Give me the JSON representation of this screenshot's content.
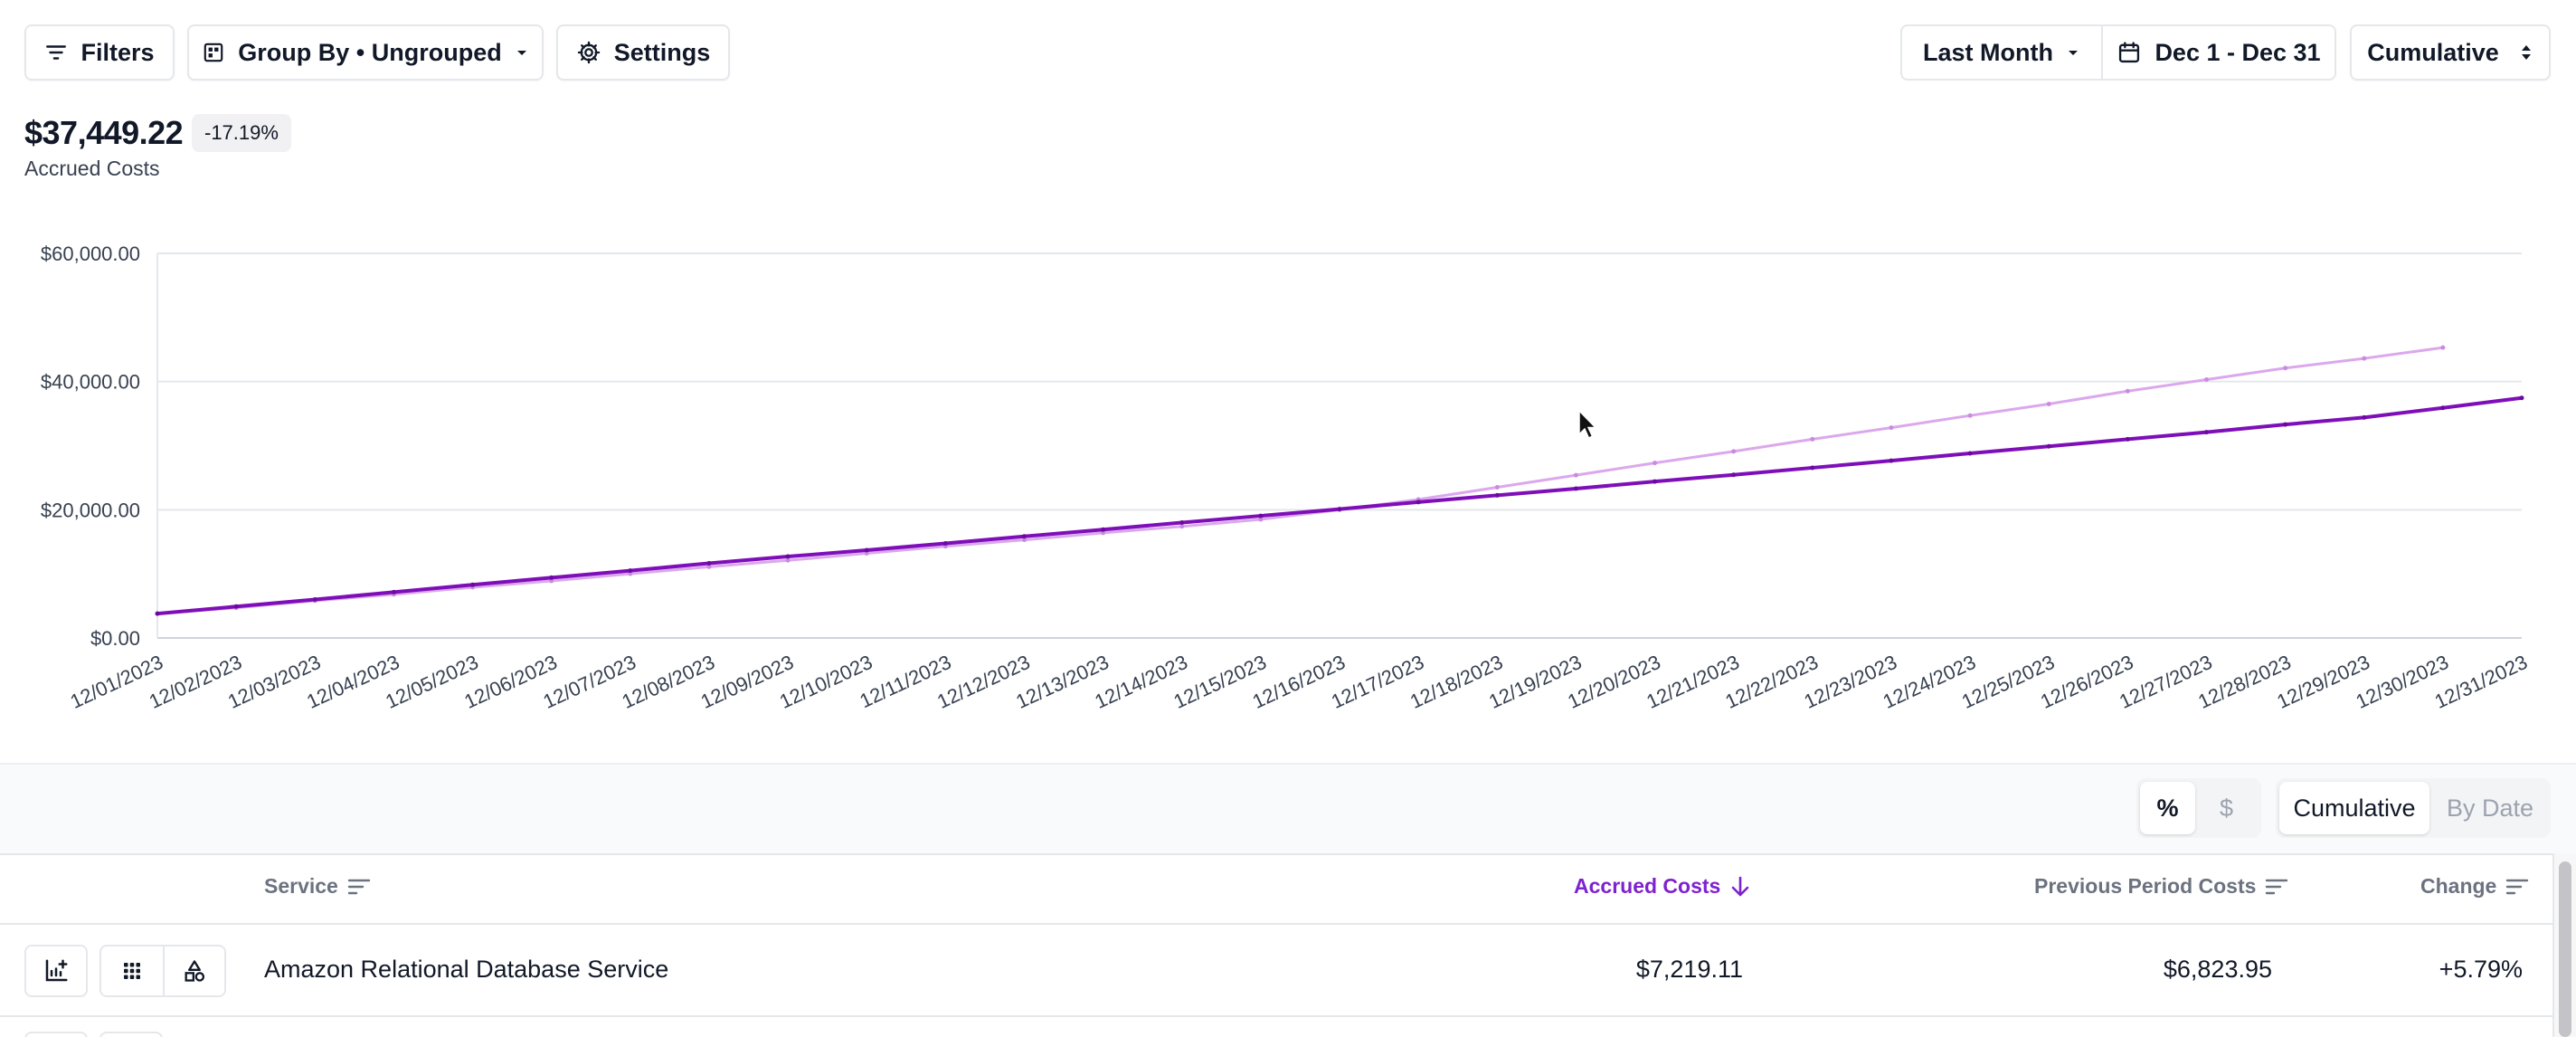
{
  "toolbar": {
    "filters_label": "Filters",
    "group_by_label": "Group By • Ungrouped",
    "settings_label": "Settings",
    "period_label": "Last Month",
    "date_range_label": "Dec 1 - Dec 31",
    "mode_label": "Cumulative"
  },
  "summary": {
    "total": "$37,449.22",
    "change": "-17.19%",
    "label": "Accrued Costs"
  },
  "colors": {
    "current_series": "#7e0fb8",
    "previous_series": "#dba8ec",
    "accent": "#7e22ce"
  },
  "chart_data": {
    "type": "line",
    "x": [
      "12/01/2023",
      "12/02/2023",
      "12/03/2023",
      "12/04/2023",
      "12/05/2023",
      "12/06/2023",
      "12/07/2023",
      "12/08/2023",
      "12/09/2023",
      "12/10/2023",
      "12/11/2023",
      "12/12/2023",
      "12/13/2023",
      "12/14/2023",
      "12/15/2023",
      "12/16/2023",
      "12/17/2023",
      "12/18/2023",
      "12/19/2023",
      "12/20/2023",
      "12/21/2023",
      "12/22/2023",
      "12/23/2023",
      "12/24/2023",
      "12/25/2023",
      "12/26/2023",
      "12/27/2023",
      "12/28/2023",
      "12/29/2023",
      "12/30/2023",
      "12/31/2023"
    ],
    "series": [
      {
        "values": [
          3800,
          4900,
          6000,
          7150,
          8300,
          9400,
          10500,
          11650,
          12700,
          13700,
          14750,
          15850,
          16900,
          18000,
          19050,
          20100,
          21200,
          22250,
          23300,
          24400,
          25450,
          26550,
          27650,
          28800,
          29900,
          31000,
          32100,
          33300,
          34400,
          35900,
          37449
        ]
      },
      {
        "values": [
          3800,
          4700,
          5800,
          6800,
          7900,
          8900,
          10000,
          11100,
          12100,
          13200,
          14300,
          15300,
          16400,
          17400,
          18500,
          20000,
          21600,
          23500,
          25400,
          27300,
          29100,
          31000,
          32800,
          34700,
          36500,
          38500,
          40300,
          42100,
          43600,
          45300,
          null
        ]
      }
    ],
    "y_ticks": [
      "$0.00",
      "$20,000.00",
      "$40,000.00",
      "$60,000.00"
    ],
    "ylim": [
      0,
      60000
    ],
    "grid": true
  },
  "view_toggles": {
    "unit_options": [
      "%",
      "$"
    ],
    "mode_options": [
      "Cumulative",
      "By Date"
    ]
  },
  "table": {
    "columns": {
      "service": "Service",
      "accrued": "Accrued Costs",
      "previous": "Previous Period Costs",
      "change": "Change"
    },
    "rows": [
      {
        "service": "Amazon Relational Database Service",
        "accrued": "$7,219.11",
        "previous": "$6,823.95",
        "change": "+5.79%"
      }
    ]
  },
  "icons": [
    "filter-icon",
    "grid-icon",
    "gear-icon",
    "caret-down-icon",
    "calendar-icon",
    "sort-updown-icon",
    "sort-lines-icon",
    "arrow-down-icon",
    "chart-add-icon",
    "dots-grid-icon",
    "shapes-icon",
    "cursor-icon"
  ]
}
